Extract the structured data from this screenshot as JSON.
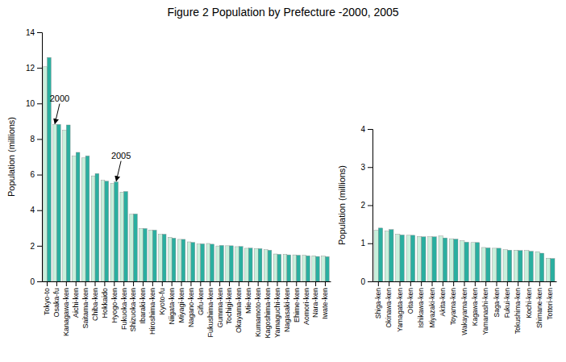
{
  "chart_data": [
    {
      "type": "bar",
      "title": "Figure 2 Population by Prefecture -2000, 2005",
      "ylabel": "Population (millions)",
      "categories": [
        "Tokyo-to",
        "Osaka-fu",
        "Kanagawa-ken",
        "Aichi-ken",
        "Saitama-ken",
        "Chiba-ken",
        "Hokkaido",
        "Hyogo-ken",
        "Fukuoka-ken",
        "Shizuoka-ken",
        "Ibaraki-ken",
        "Hiroshima-ken",
        "Kyoto-fu",
        "Niigata-ken",
        "Miyagi-ken",
        "Nagano-ken",
        "Gifu-ken",
        "Fukushima-ken",
        "Gumma-ken",
        "Tochigi-ken",
        "Okayama-ken",
        "Mie-ken",
        "Kumamoto-ken",
        "Kagoshima-ken",
        "Yamaguchi-ken",
        "Nagasaki-ken",
        "Ehime-ken",
        "Aomori-ken",
        "Nara-ken",
        "Iwate-ken"
      ],
      "series": [
        {
          "color": "#c8f0dc",
          "values": [
            12.06,
            8.81,
            8.49,
            7.04,
            6.94,
            5.93,
            5.68,
            5.5,
            5.02,
            3.77,
            2.97,
            2.88,
            2.64,
            2.48,
            2.36,
            2.22,
            2.1,
            2.13,
            1.99,
            2.0,
            1.95,
            1.86,
            1.85,
            1.78,
            1.54,
            1.52,
            1.49,
            1.47,
            1.44,
            1.42
          ],
          "annotations": [
            {
              "text": "2000",
              "category": "Osaka-fu"
            }
          ]
        },
        {
          "color": "#2aafa0",
          "values": [
            12.58,
            8.82,
            8.79,
            7.25,
            7.05,
            6.06,
            5.63,
            5.59,
            5.05,
            3.79,
            2.97,
            2.88,
            2.65,
            2.43,
            2.36,
            2.19,
            2.11,
            2.09,
            2.02,
            2.0,
            1.96,
            1.87,
            1.84,
            1.75,
            1.52,
            1.49,
            1.47,
            1.44,
            1.4,
            1.39
          ],
          "annotations": [
            {
              "text": "2005",
              "category": "Hyogo-ken"
            }
          ]
        }
      ],
      "ylim": [
        0,
        14
      ],
      "yticks": [
        0,
        2,
        4,
        6,
        8,
        10,
        12,
        14
      ],
      "grid": false
    },
    {
      "type": "bar",
      "ylabel": "Population (millions)",
      "categories": [
        "Shiga-ken",
        "Okinawa-ken",
        "Yamagata-ken",
        "Oita-ken",
        "Ishikawa-ken",
        "Miyazaki-ken",
        "Akita-ken",
        "Toyama-ken",
        "Wakayama-ken",
        "Kagawa-ken",
        "Yamanashi-ken",
        "Saga-ken",
        "Fukui-ken",
        "Tokushima-ken",
        "Kochi-ken",
        "Shimane-ken",
        "Tottori-ken"
      ],
      "series": [
        {
          "color": "#c8f0dc",
          "values": [
            1.34,
            1.32,
            1.24,
            1.21,
            1.18,
            1.17,
            1.19,
            1.12,
            1.07,
            1.02,
            0.89,
            0.87,
            0.83,
            0.82,
            0.81,
            0.78,
            0.61
          ]
        },
        {
          "color": "#2aafa0",
          "values": [
            1.4,
            1.36,
            1.22,
            1.21,
            1.17,
            1.17,
            1.14,
            1.11,
            1.03,
            1.02,
            0.88,
            0.87,
            0.82,
            0.81,
            0.79,
            0.74,
            0.6
          ]
        }
      ],
      "ylim": [
        0,
        4
      ],
      "yticks": [
        0,
        1,
        2,
        3,
        4
      ],
      "grid": false
    }
  ]
}
